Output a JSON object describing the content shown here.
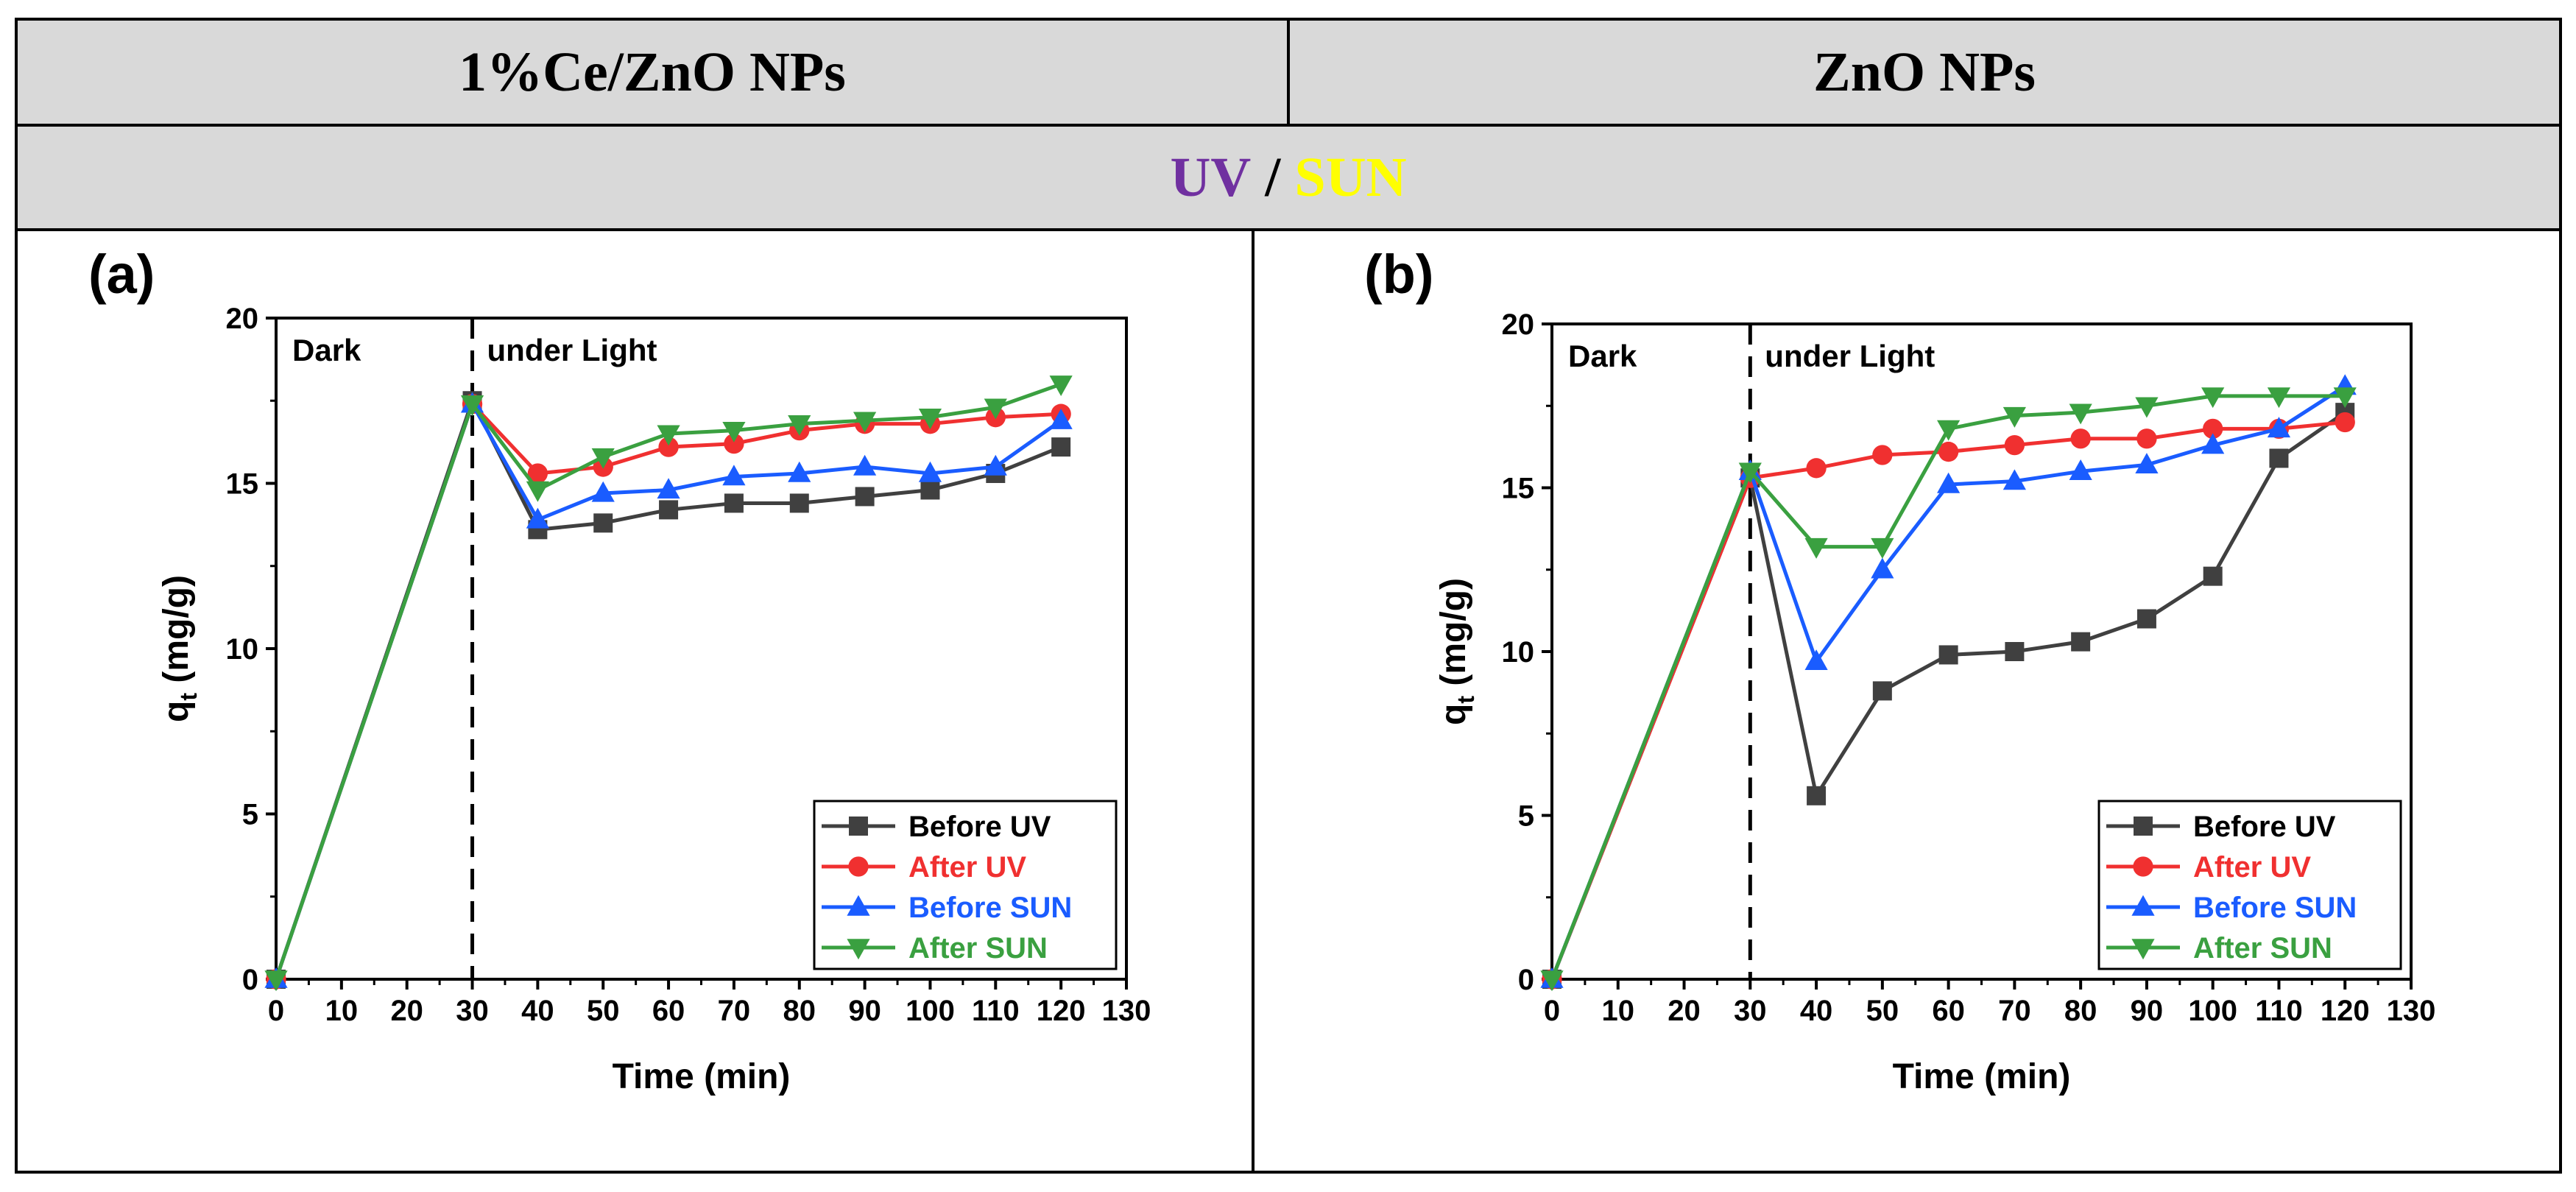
{
  "header": {
    "left_title": "1%Ce/ZnO NPs",
    "right_title": "ZnO NPs",
    "uv_label": "UV",
    "separator": " / ",
    "sun_label": "SUN"
  },
  "colors": {
    "uv": "#7030a0",
    "sun": "#ffff00",
    "before_uv": "#404040",
    "after_uv": "#f03030",
    "before_sun": "#1a5cff",
    "after_sun": "#3aa040"
  },
  "chart_data": [
    {
      "type": "line",
      "panel_label": "(a)",
      "xlabel": "Time (min)",
      "ylabel": "q",
      "ylabel_sub": "t",
      "ylabel_unit": " (mg/g)",
      "xlim": [
        0,
        130
      ],
      "ylim": [
        0,
        20
      ],
      "xticks": [
        0,
        10,
        20,
        30,
        40,
        50,
        60,
        70,
        80,
        90,
        100,
        110,
        120,
        130
      ],
      "yticks": [
        0,
        5,
        10,
        15,
        20
      ],
      "annotations": [
        "Dark",
        "under Light"
      ],
      "divider_x": 30,
      "legend_position": "bottom-right",
      "x": [
        0,
        30,
        40,
        50,
        60,
        70,
        80,
        90,
        100,
        110,
        120
      ],
      "series": [
        {
          "name": "Before UV",
          "marker": "square",
          "values": [
            0,
            17.5,
            13.6,
            13.8,
            14.2,
            14.4,
            14.4,
            14.6,
            14.8,
            15.3,
            16.1
          ]
        },
        {
          "name": "After UV",
          "marker": "circle",
          "values": [
            0,
            17.4,
            15.3,
            15.5,
            16.1,
            16.2,
            16.6,
            16.8,
            16.8,
            17.0,
            17.1
          ]
        },
        {
          "name": "Before SUN",
          "marker": "triangle-up",
          "values": [
            0,
            17.4,
            13.9,
            14.7,
            14.8,
            15.2,
            15.3,
            15.5,
            15.3,
            15.5,
            16.9
          ]
        },
        {
          "name": "After SUN",
          "marker": "triangle-down",
          "values": [
            0,
            17.4,
            14.8,
            15.8,
            16.5,
            16.6,
            16.8,
            16.9,
            17.0,
            17.3,
            18.0
          ]
        }
      ]
    },
    {
      "type": "line",
      "panel_label": "(b)",
      "xlabel": "Time (min)",
      "ylabel": "q",
      "ylabel_sub": "t",
      "ylabel_unit": " (mg/g)",
      "xlim": [
        0,
        130
      ],
      "ylim": [
        0,
        20
      ],
      "xticks": [
        0,
        10,
        20,
        30,
        40,
        50,
        60,
        70,
        80,
        90,
        100,
        110,
        120,
        130
      ],
      "yticks": [
        0,
        5,
        10,
        15,
        20
      ],
      "annotations": [
        "Dark",
        "under Light"
      ],
      "divider_x": 30,
      "legend_position": "bottom-right",
      "x": [
        0,
        30,
        40,
        50,
        60,
        70,
        80,
        90,
        100,
        110,
        120
      ],
      "series": [
        {
          "name": "Before UV",
          "marker": "square",
          "values": [
            0,
            15.3,
            5.6,
            8.8,
            9.9,
            10.0,
            10.3,
            11.0,
            12.3,
            15.9,
            17.3
          ]
        },
        {
          "name": "After UV",
          "marker": "circle",
          "values": [
            0,
            15.3,
            15.6,
            16.0,
            16.1,
            16.3,
            16.5,
            16.5,
            16.8,
            16.8,
            17.0
          ]
        },
        {
          "name": "Before SUN",
          "marker": "triangle-up",
          "values": [
            0,
            15.5,
            9.7,
            12.5,
            15.1,
            15.2,
            15.5,
            15.7,
            16.3,
            16.8,
            18.1
          ]
        },
        {
          "name": "After SUN",
          "marker": "triangle-down",
          "values": [
            0,
            15.5,
            13.2,
            13.2,
            16.8,
            17.2,
            17.3,
            17.5,
            17.8,
            17.8,
            17.8
          ]
        }
      ]
    }
  ]
}
